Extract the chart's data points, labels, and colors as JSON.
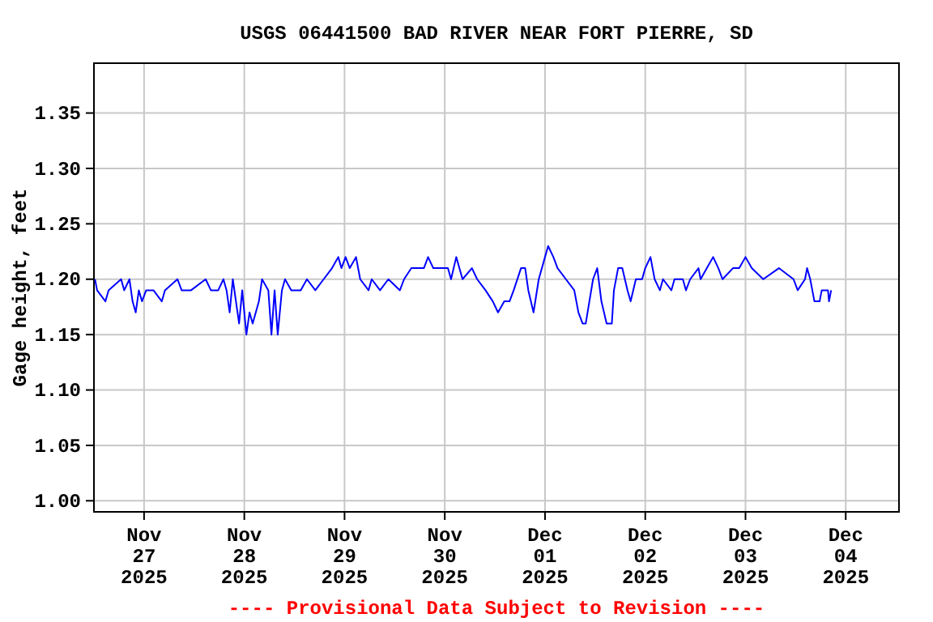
{
  "chart_data": {
    "type": "line",
    "title": "USGS 06441500 BAD RIVER NEAR FORT PIERRE, SD",
    "ylabel": "Gage height, feet",
    "annotations": [
      "---- Provisional Data Subject to Revision ----"
    ],
    "grid": true,
    "xlim": [
      "2025-11-26T12:00",
      "2025-12-04T12:45"
    ],
    "ylim": [
      0.99,
      1.395
    ],
    "xticks": [
      {
        "value": "2025-11-27T00:00",
        "label": "Nov\n27\n2025"
      },
      {
        "value": "2025-11-28T00:00",
        "label": "Nov\n28\n2025"
      },
      {
        "value": "2025-11-29T00:00",
        "label": "Nov\n29\n2025"
      },
      {
        "value": "2025-11-30T00:00",
        "label": "Nov\n30\n2025"
      },
      {
        "value": "2025-12-01T00:00",
        "label": "Dec\n01\n2025"
      },
      {
        "value": "2025-12-02T00:00",
        "label": "Dec\n02\n2025"
      },
      {
        "value": "2025-12-03T00:00",
        "label": "Dec\n03\n2025"
      },
      {
        "value": "2025-12-04T00:00",
        "label": "Dec\n04\n2025"
      }
    ],
    "yticks": [
      {
        "value": 1.0,
        "label": "1.00"
      },
      {
        "value": 1.05,
        "label": "1.05"
      },
      {
        "value": 1.1,
        "label": "1.10"
      },
      {
        "value": 1.15,
        "label": "1.15"
      },
      {
        "value": 1.2,
        "label": "1.20"
      },
      {
        "value": 1.25,
        "label": "1.25"
      },
      {
        "value": 1.3,
        "label": "1.30"
      },
      {
        "value": 1.35,
        "label": "1.35"
      }
    ],
    "series": [
      {
        "color": "#0000ff",
        "x": [
          "2025-11-26T12:15",
          "2025-11-26T12:45",
          "2025-11-26T14:45",
          "2025-11-26T15:30",
          "2025-11-26T18:30",
          "2025-11-26T19:15",
          "2025-11-26T20:30",
          "2025-11-26T21:15",
          "2025-11-26T22:00",
          "2025-11-26T22:45",
          "2025-11-26T23:30",
          "2025-11-27T00:30",
          "2025-11-27T02:15",
          "2025-11-27T04:15",
          "2025-11-27T05:00",
          "2025-11-27T08:00",
          "2025-11-27T09:00",
          "2025-11-27T11:15",
          "2025-11-27T14:45",
          "2025-11-27T16:00",
          "2025-11-27T17:45",
          "2025-11-27T19:00",
          "2025-11-27T19:45",
          "2025-11-27T20:30",
          "2025-11-27T21:15",
          "2025-11-27T22:00",
          "2025-11-27T22:45",
          "2025-11-27T23:30",
          "2025-11-28T00:30",
          "2025-11-28T01:15",
          "2025-11-28T02:00",
          "2025-11-28T02:45",
          "2025-11-28T03:30",
          "2025-11-28T04:15",
          "2025-11-28T05:45",
          "2025-11-28T06:30",
          "2025-11-28T07:15",
          "2025-11-28T08:00",
          "2025-11-28T09:00",
          "2025-11-28T09:45",
          "2025-11-28T11:15",
          "2025-11-28T13:30",
          "2025-11-28T15:00",
          "2025-11-28T17:00",
          "2025-11-28T19:00",
          "2025-11-28T21:00",
          "2025-11-28T22:30",
          "2025-11-28T23:15",
          "2025-11-29T00:15",
          "2025-11-29T01:15",
          "2025-11-29T02:45",
          "2025-11-29T03:45",
          "2025-11-29T05:45",
          "2025-11-29T06:30",
          "2025-11-29T08:30",
          "2025-11-29T10:30",
          "2025-11-29T13:15",
          "2025-11-29T14:15",
          "2025-11-29T16:00",
          "2025-11-29T19:00",
          "2025-11-29T20:00",
          "2025-11-29T21:15",
          "2025-11-30T00:45",
          "2025-11-30T01:30",
          "2025-11-30T02:45",
          "2025-11-30T04:15",
          "2025-11-30T06:30",
          "2025-11-30T07:45",
          "2025-11-30T09:45",
          "2025-11-30T11:30",
          "2025-11-30T12:45",
          "2025-11-30T14:15",
          "2025-11-30T15:30",
          "2025-11-30T16:30",
          "2025-11-30T18:15",
          "2025-11-30T19:15",
          "2025-11-30T20:00",
          "2025-11-30T21:15",
          "2025-11-30T22:30",
          "2025-12-01T00:00",
          "2025-12-01T00:45",
          "2025-12-01T02:00",
          "2025-12-01T03:00",
          "2025-12-01T05:00",
          "2025-12-01T07:00",
          "2025-12-01T08:00",
          "2025-12-01T09:00",
          "2025-12-01T09:45",
          "2025-12-01T11:30",
          "2025-12-01T12:30",
          "2025-12-01T13:30",
          "2025-12-01T14:45",
          "2025-12-01T16:00",
          "2025-12-01T16:30",
          "2025-12-01T17:30",
          "2025-12-01T18:30",
          "2025-12-01T19:45",
          "2025-12-01T20:30",
          "2025-12-01T21:45",
          "2025-12-01T23:15",
          "2025-12-02T00:00",
          "2025-12-02T01:15",
          "2025-12-02T02:15",
          "2025-12-02T03:30",
          "2025-12-02T04:15",
          "2025-12-02T06:15",
          "2025-12-02T07:00",
          "2025-12-02T09:00",
          "2025-12-02T09:45",
          "2025-12-02T10:45",
          "2025-12-02T12:45",
          "2025-12-02T13:15",
          "2025-12-02T14:45",
          "2025-12-02T16:15",
          "2025-12-02T17:30",
          "2025-12-02T18:30",
          "2025-12-02T21:00",
          "2025-12-02T22:30",
          "2025-12-03T00:00",
          "2025-12-03T01:30",
          "2025-12-03T04:15",
          "2025-12-03T08:00",
          "2025-12-03T11:30",
          "2025-12-03T12:30",
          "2025-12-03T14:15",
          "2025-12-03T14:45",
          "2025-12-03T15:30",
          "2025-12-03T16:30",
          "2025-12-03T17:45",
          "2025-12-03T18:15",
          "2025-12-03T19:45",
          "2025-12-03T20:00",
          "2025-12-03T20:30"
        ],
        "values": [
          1.2,
          1.19,
          1.18,
          1.19,
          1.2,
          1.19,
          1.2,
          1.18,
          1.17,
          1.19,
          1.18,
          1.19,
          1.19,
          1.18,
          1.19,
          1.2,
          1.19,
          1.19,
          1.2,
          1.19,
          1.19,
          1.2,
          1.19,
          1.17,
          1.2,
          1.18,
          1.16,
          1.19,
          1.15,
          1.17,
          1.16,
          1.17,
          1.18,
          1.2,
          1.19,
          1.15,
          1.19,
          1.15,
          1.19,
          1.2,
          1.19,
          1.19,
          1.2,
          1.19,
          1.2,
          1.21,
          1.22,
          1.21,
          1.22,
          1.21,
          1.22,
          1.2,
          1.19,
          1.2,
          1.19,
          1.2,
          1.19,
          1.2,
          1.21,
          1.21,
          1.22,
          1.21,
          1.21,
          1.2,
          1.22,
          1.2,
          1.21,
          1.2,
          1.19,
          1.18,
          1.17,
          1.18,
          1.18,
          1.19,
          1.21,
          1.21,
          1.19,
          1.17,
          1.2,
          1.22,
          1.23,
          1.22,
          1.21,
          1.2,
          1.19,
          1.17,
          1.16,
          1.16,
          1.2,
          1.21,
          1.18,
          1.16,
          1.16,
          1.19,
          1.21,
          1.21,
          1.19,
          1.18,
          1.2,
          1.2,
          1.21,
          1.22,
          1.2,
          1.19,
          1.2,
          1.19,
          1.2,
          1.2,
          1.19,
          1.2,
          1.21,
          1.2,
          1.21,
          1.22,
          1.21,
          1.2,
          1.21,
          1.21,
          1.22,
          1.21,
          1.2,
          1.21,
          1.2,
          1.19,
          1.2,
          1.21,
          1.2,
          1.18,
          1.18,
          1.19,
          1.19,
          1.18,
          1.19
        ]
      }
    ]
  }
}
